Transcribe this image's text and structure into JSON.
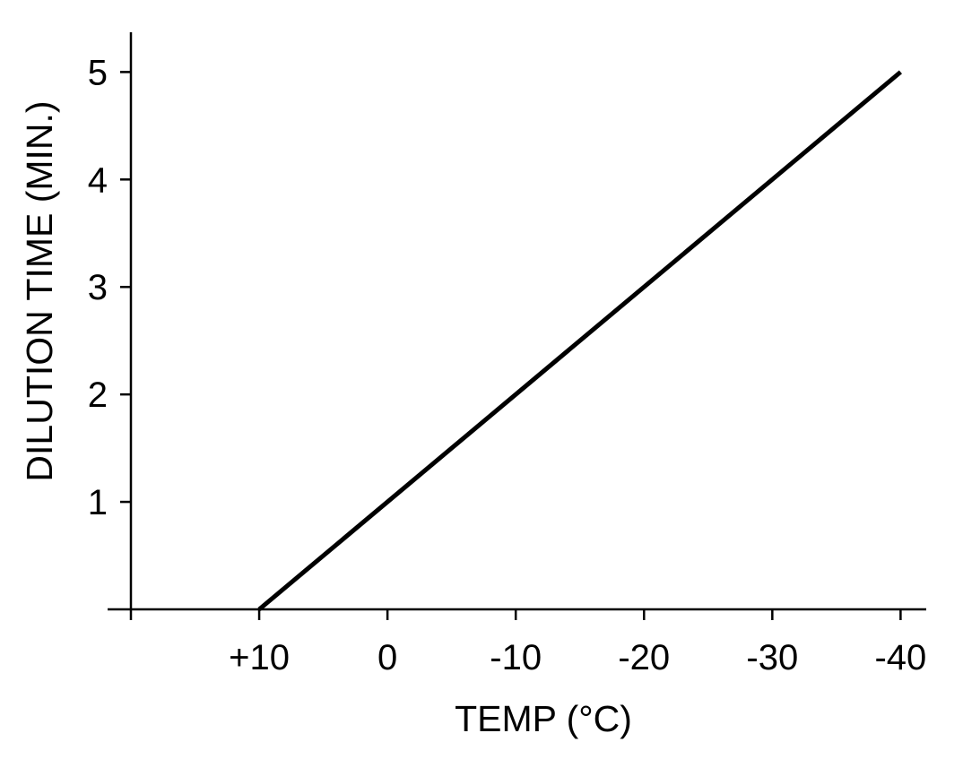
{
  "chart_data": {
    "type": "line",
    "title": "",
    "xlabel": "TEMP (°C)",
    "ylabel": "DILUTION TIME (MIN.)",
    "x_axis_direction": "reversed",
    "x_ticks": [
      {
        "value": 10,
        "label": "+10"
      },
      {
        "value": 0,
        "label": "0"
      },
      {
        "value": -10,
        "label": "-10"
      },
      {
        "value": -20,
        "label": "-20"
      },
      {
        "value": -30,
        "label": "-30"
      },
      {
        "value": -40,
        "label": "-40"
      }
    ],
    "y_ticks": [
      {
        "value": 1,
        "label": "1"
      },
      {
        "value": 2,
        "label": "2"
      },
      {
        "value": 3,
        "label": "3"
      },
      {
        "value": 4,
        "label": "4"
      },
      {
        "value": 5,
        "label": "5"
      }
    ],
    "xlim": [
      20,
      -42
    ],
    "ylim": [
      0,
      5.37
    ],
    "grid": false,
    "series": [
      {
        "points": [
          {
            "x": 10,
            "y": 0
          },
          {
            "x": -40,
            "y": 5
          }
        ]
      }
    ]
  }
}
